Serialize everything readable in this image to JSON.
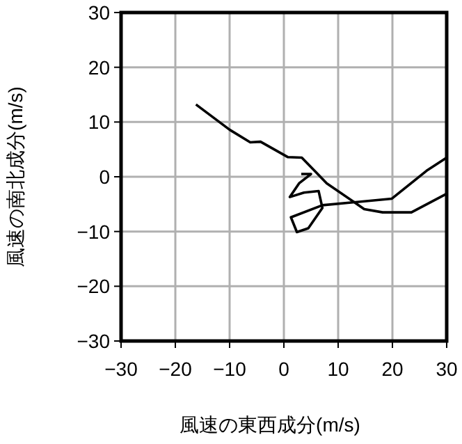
{
  "chart_data": {
    "type": "line",
    "xlabel": "風速の東西成分(m/s)",
    "ylabel": "風速の南北成分(m/s)",
    "xlim": [
      -30,
      30
    ],
    "ylim": [
      -30,
      30
    ],
    "xticks": [
      {
        "value": -30,
        "label": "−30"
      },
      {
        "value": -20,
        "label": "−20"
      },
      {
        "value": -10,
        "label": "−10"
      },
      0,
      10,
      20,
      30
    ],
    "yticks": [
      {
        "value": -30,
        "label": "−30"
      },
      {
        "value": -20,
        "label": "−20"
      },
      {
        "value": -10,
        "label": "−10"
      },
      0,
      10,
      20,
      30
    ],
    "grid": true,
    "marker": "none",
    "line_style": "solid",
    "series": [
      {
        "color": "#000000",
        "x": [
          -16.2,
          -10,
          -6.2,
          -4.3,
          0.7,
          3.3,
          7.9,
          14.8,
          18.2,
          23.5,
          30
        ],
        "values": [
          13.2,
          8.6,
          6.3,
          6.4,
          3.6,
          3.5,
          -1.2,
          -5.9,
          -6.5,
          -6.5,
          -3.1
        ]
      },
      {
        "color": "#000000",
        "x": [
          3.2,
          5,
          2.8,
          1.1,
          3.7,
          6.4,
          7.1,
          4.5,
          2.4,
          1.3,
          7.1,
          19.9,
          26.3,
          30
        ],
        "values": [
          0.5,
          0.5,
          -1.2,
          -3.7,
          -2.9,
          -2.6,
          -5.7,
          -9.4,
          -10.1,
          -7.4,
          -5.2,
          -4,
          1.1,
          3.5
        ]
      }
    ]
  }
}
